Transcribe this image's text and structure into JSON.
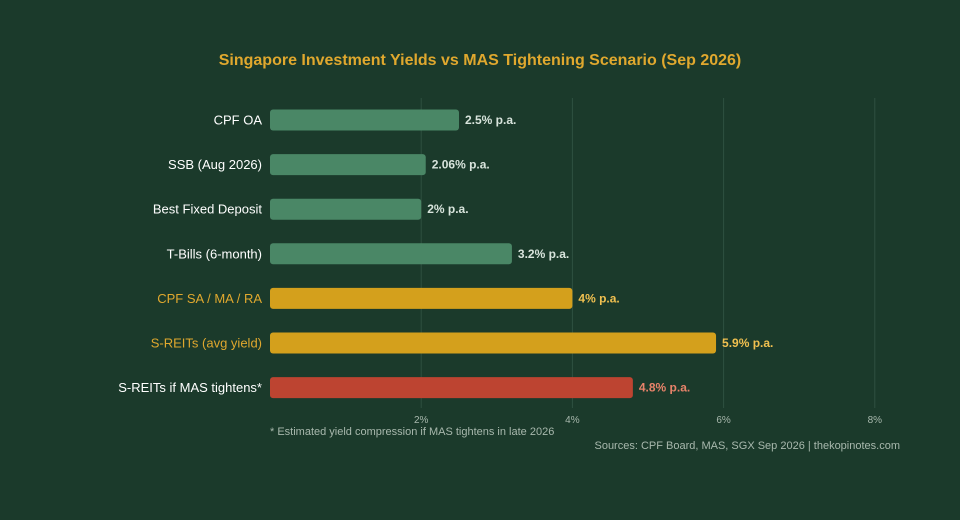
{
  "chart_data": {
    "type": "bar",
    "orientation": "horizontal",
    "title": "Singapore Investment Yields vs MAS Tightening Scenario (Sep 2026)",
    "categories": [
      "CPF OA",
      "SSB (Aug 2026)",
      "Best Fixed Deposit",
      "T-Bills (6-month)",
      "CPF SA / MA / RA",
      "S-REITs (avg yield)",
      "S-REITs if MAS tightens*"
    ],
    "values": [
      2.5,
      2.06,
      2,
      3.2,
      4,
      5.9,
      4.8
    ],
    "data_labels": [
      "2.5% p.a.",
      "2.06% p.a.",
      "2% p.a.",
      "3.2% p.a.",
      "4% p.a.",
      "5.9% p.a.",
      "4.8% p.a."
    ],
    "bar_colors": [
      "#4a8766",
      "#4a8766",
      "#4a8766",
      "#4a8766",
      "#d4a01c",
      "#d4a01c",
      "#bd4431"
    ],
    "label_colors": [
      "#ffffff",
      "#ffffff",
      "#ffffff",
      "#ffffff",
      "#e0a82e",
      "#e0a82e",
      "#ffffff"
    ],
    "value_label_colors": [
      "#d8e4dc",
      "#d8e4dc",
      "#d8e4dc",
      "#d8e4dc",
      "#f0c050",
      "#f0c050",
      "#e8836a"
    ],
    "xlim": [
      0,
      9
    ],
    "xticks": [
      2,
      4,
      6,
      8
    ],
    "xtick_labels": [
      "2%",
      "4%",
      "6%",
      "8%"
    ],
    "grid": true,
    "footnote": "* Estimated yield compression if MAS tightens in late 2026",
    "source": "Sources: CPF Board, MAS, SGX Sep 2026 | thekopinotes.com"
  },
  "colors": {
    "background": "#1b3a2b",
    "title": "#e0a82e",
    "grid": "#2f5040",
    "axis_text": "#a8b8ad"
  }
}
